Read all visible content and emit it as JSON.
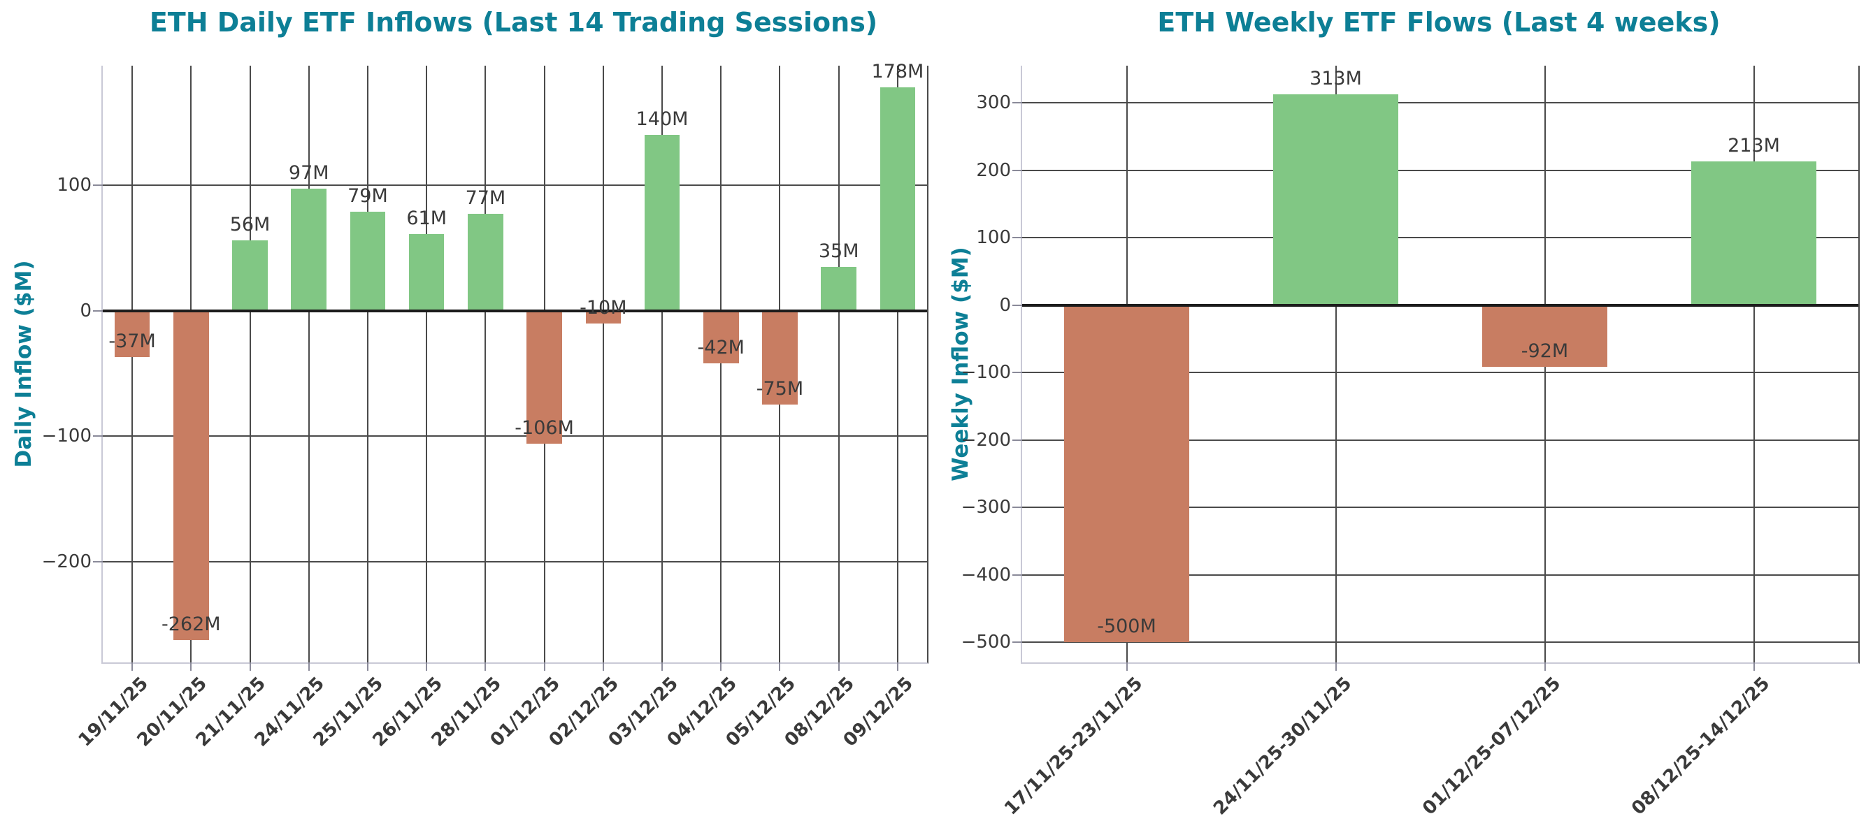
{
  "figure": {
    "background": "#ffffff",
    "accent_color": "#0d7f96",
    "grid_color": "#4a4a4a",
    "zero_line_color": "#1c1c1c",
    "tick_label_color": "#3a3a3a",
    "positive_color": "#81c784",
    "negative_color": "#c87d62"
  },
  "chart_data": [
    {
      "type": "bar",
      "title": "ETH Daily ETF Inflows (Last 14 Trading Sessions)",
      "xlabel": "",
      "ylabel": "Daily Inflow ($M)",
      "categories": [
        "19/11/25",
        "20/11/25",
        "21/11/25",
        "24/11/25",
        "25/11/25",
        "26/11/25",
        "28/11/25",
        "01/12/25",
        "02/12/25",
        "03/12/25",
        "04/12/25",
        "05/12/25",
        "08/12/25",
        "09/12/25"
      ],
      "values": [
        -37,
        -262,
        56,
        97,
        79,
        61,
        77,
        -106,
        -10,
        140,
        -42,
        -75,
        35,
        178
      ],
      "value_labels": [
        "-37M",
        "-262M",
        "56M",
        "97M",
        "79M",
        "61M",
        "77M",
        "-106M",
        "-10M",
        "140M",
        "-42M",
        "-75M",
        "35M",
        "178M"
      ],
      "ylim": [
        -280,
        195
      ],
      "yticks": [
        100,
        0,
        -100,
        -200
      ],
      "ytick_labels": [
        "100",
        "0",
        "−100",
        "−200"
      ],
      "grid": true,
      "legend": "none"
    },
    {
      "type": "bar",
      "title": "ETH Weekly ETF Flows (Last 4 weeks)",
      "xlabel": "",
      "ylabel": "Weekly Inflow ($M)",
      "categories": [
        "17/11/25-23/11/25",
        "24/11/25-30/11/25",
        "01/12/25-07/12/25",
        "08/12/25-14/12/25"
      ],
      "values": [
        -500,
        313,
        -92,
        213
      ],
      "value_labels": [
        "-500M",
        "313M",
        "-92M",
        "213M"
      ],
      "ylim": [
        -530,
        355
      ],
      "yticks": [
        300,
        200,
        100,
        0,
        -100,
        -200,
        -300,
        -400,
        -500
      ],
      "ytick_labels": [
        "300",
        "200",
        "100",
        "0",
        "−100",
        "−200",
        "−300",
        "−400",
        "−500"
      ],
      "grid": true,
      "legend": "none"
    }
  ]
}
